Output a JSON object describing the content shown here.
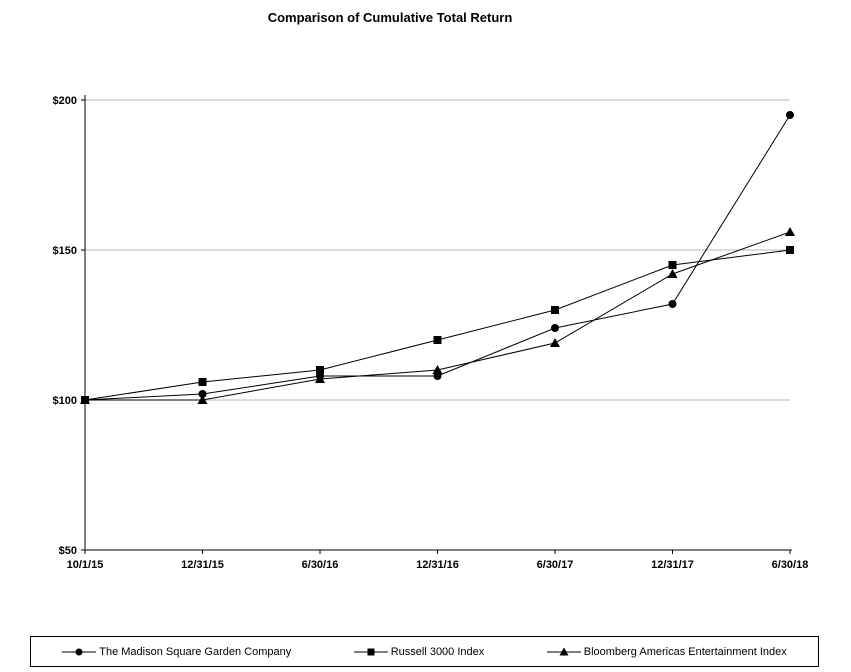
{
  "title": "Comparison of Cumulative Total Return",
  "chart_data": {
    "type": "line",
    "title": "Comparison of Cumulative Total Return",
    "categories": [
      "10/1/15",
      "12/31/15",
      "6/30/16",
      "12/31/16",
      "6/30/17",
      "12/31/17",
      "6/30/18"
    ],
    "series": [
      {
        "name": "The Madison Square Garden Company",
        "marker": "circle",
        "values": [
          100,
          102,
          108,
          108,
          124,
          132,
          195
        ]
      },
      {
        "name": "Russell 3000 Index",
        "marker": "square",
        "values": [
          100,
          106,
          110,
          120,
          130,
          145,
          150
        ]
      },
      {
        "name": "Bloomberg Americas Entertainment Index",
        "marker": "triangle",
        "values": [
          100,
          100,
          107,
          110,
          119,
          142,
          156
        ]
      }
    ],
    "xlabel": "",
    "ylabel": "",
    "ylim": [
      50,
      200
    ],
    "yticks": [
      50,
      100,
      150,
      200
    ],
    "ytick_labels": [
      "$50",
      "$100",
      "$150",
      "$200"
    ],
    "grid": true,
    "legend_position": "bottom",
    "colors": {
      "line": "#000000",
      "grid": "#b8b8b8",
      "axis": "#000000",
      "marker": "#000000"
    }
  }
}
